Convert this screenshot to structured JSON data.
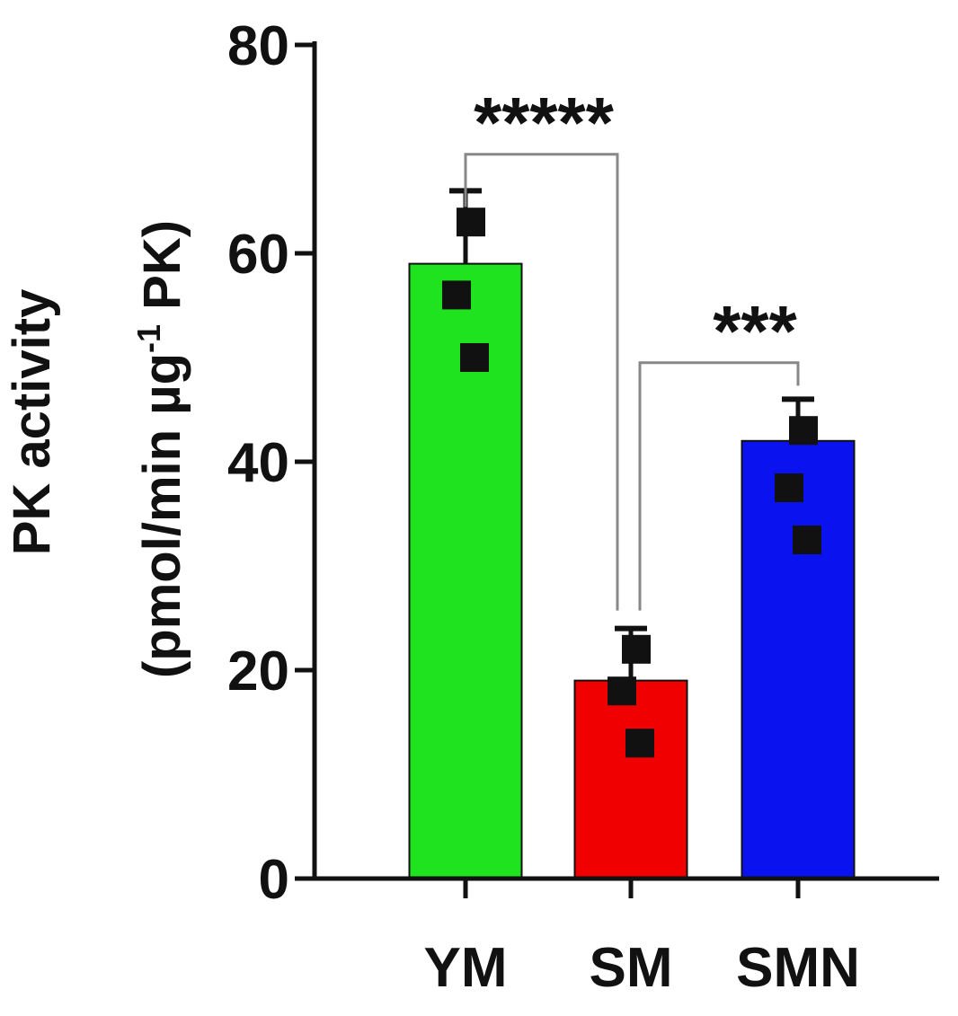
{
  "chart_data": {
    "type": "bar",
    "title": "",
    "xlabel": "",
    "ylabel_line1": "PK activity",
    "ylabel_line2_pre": "(pmol/min µg",
    "ylabel_sup": "-1",
    "ylabel_line2_post": " PK)",
    "ylim": [
      0,
      80
    ],
    "yticks": [
      0,
      20,
      40,
      60,
      80
    ],
    "ytick_labels": [
      "0",
      "20",
      "40",
      "60",
      "80"
    ],
    "categories": [
      "YM",
      "SM",
      "SMN"
    ],
    "values": [
      59,
      19,
      42
    ],
    "error_upper": [
      66,
      24,
      46
    ],
    "points": [
      [
        63,
        56,
        50
      ],
      [
        22,
        18,
        13
      ],
      [
        43,
        37.5,
        32.5
      ]
    ],
    "colors": [
      "#1fe31f",
      "#f00000",
      "#0a12f0"
    ],
    "grid": false,
    "significance": [
      {
        "from": "YM",
        "to": "SM",
        "label": "*****"
      },
      {
        "from": "SM",
        "to": "SMN",
        "label": "***"
      }
    ]
  }
}
